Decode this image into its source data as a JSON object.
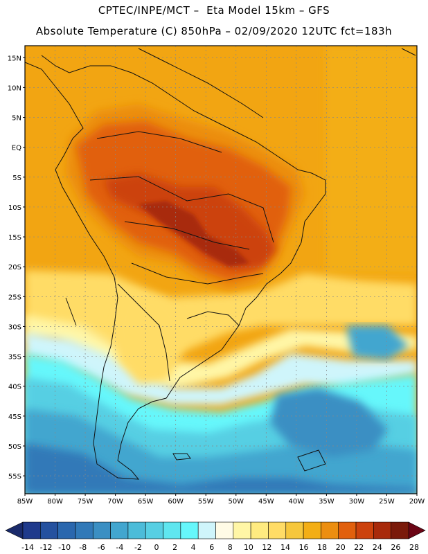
{
  "header": {
    "line1": "CPTEC/INPE/MCT –  Eta Model 15km – GFS",
    "line2": "Absolute Temperature (C) 850hPa – 02/09/2020 12UTC fct=183h"
  },
  "map": {
    "lon_range": [
      -85,
      -20
    ],
    "lat_range": [
      -58,
      17
    ],
    "lat_ticks": [
      "15N",
      "10N",
      "5N",
      "EQ",
      "5S",
      "10S",
      "15S",
      "20S",
      "25S",
      "30S",
      "35S",
      "40S",
      "45S",
      "50S",
      "55S"
    ],
    "lat_values": [
      15,
      10,
      5,
      0,
      -5,
      -10,
      -15,
      -20,
      -25,
      -30,
      -35,
      -40,
      -45,
      -50,
      -55
    ],
    "lon_ticks": [
      "85W",
      "80W",
      "75W",
      "70W",
      "65W",
      "60W",
      "55W",
      "50W",
      "45W",
      "40W",
      "35W",
      "30W",
      "25W",
      "20W"
    ],
    "lon_values": [
      -85,
      -80,
      -75,
      -70,
      -65,
      -60,
      -55,
      -50,
      -45,
      -40,
      -35,
      -30,
      -25,
      -20
    ],
    "grid": true
  },
  "colorbar": {
    "labels": [
      "-14",
      "-12",
      "-10",
      "-8",
      "-6",
      "-4",
      "-2",
      "0",
      "2",
      "4",
      "6",
      "8",
      "10",
      "12",
      "14",
      "16",
      "18",
      "20",
      "22",
      "24",
      "26",
      "28"
    ],
    "colors": [
      "#1f3a8c",
      "#24519f",
      "#2a67ae",
      "#3179b8",
      "#3b8fc3",
      "#42a6cf",
      "#4cbcd9",
      "#57cfe3",
      "#5fe6ef",
      "#66f7fb",
      "#cff5fb",
      "#fffbe6",
      "#fff6a6",
      "#ffeb80",
      "#ffdc66",
      "#f6c73c",
      "#f3ae15",
      "#ec8e10",
      "#e1600d",
      "#cc420d",
      "#a82a0b",
      "#7a1a0a"
    ],
    "left_arrow_color": "#1a2a6b",
    "right_arrow_color": "#6b0515"
  }
}
